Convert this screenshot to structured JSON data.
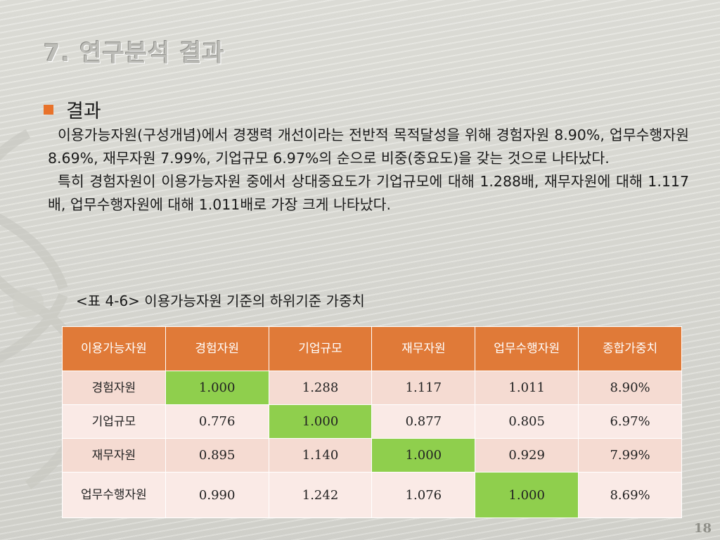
{
  "slide": {
    "title": "7. 연구분석 결과",
    "bullet": "결과",
    "paragraphs": [
      "이용가능자원(구성개념)에서 경쟁력 개선이라는 전반적 목적달성을 위해 경험자원 8.90%, 업무수행자원 8.69%, 재무자원 7.99%, 기업규모 6.97%의 순으로 비중(중요도)을 갖는 것으로 나타났다.",
      "특히 경험자원이 이용가능자원 중에서 상대중요도가 기업규모에 대해 1.288배, 재무자원에 대해 1.117배, 업무수행자원에 대해 1.011배로 가장 크게 나타났다."
    ],
    "table_caption": "<표 4-6> 이용가능자원 기준의 하위기준 가중치",
    "page_number": "18"
  },
  "table": {
    "headers": [
      "이용가능자원",
      "경험자원",
      "기업규모",
      "재무자원",
      "업무수행자원",
      "종합가중치"
    ],
    "rows": [
      [
        "경험자원",
        "1.000",
        "1.288",
        "1.117",
        "1.011",
        "8.90%"
      ],
      [
        "기업규모",
        "0.776",
        "1.000",
        "0.877",
        "0.805",
        "6.97%"
      ],
      [
        "재무자원",
        "0.895",
        "1.140",
        "1.000",
        "0.929",
        "7.99%"
      ],
      [
        "업무수행자원",
        "0.990",
        "1.242",
        "1.076",
        "1.000",
        "8.69%"
      ]
    ]
  },
  "colors": {
    "header_fill": "#e07a38",
    "diagonal_highlight": "#8fcf4d",
    "bullet": "#e8722a",
    "row_alt_1": "#f5dbd2",
    "row_alt_2": "#faeae6"
  }
}
